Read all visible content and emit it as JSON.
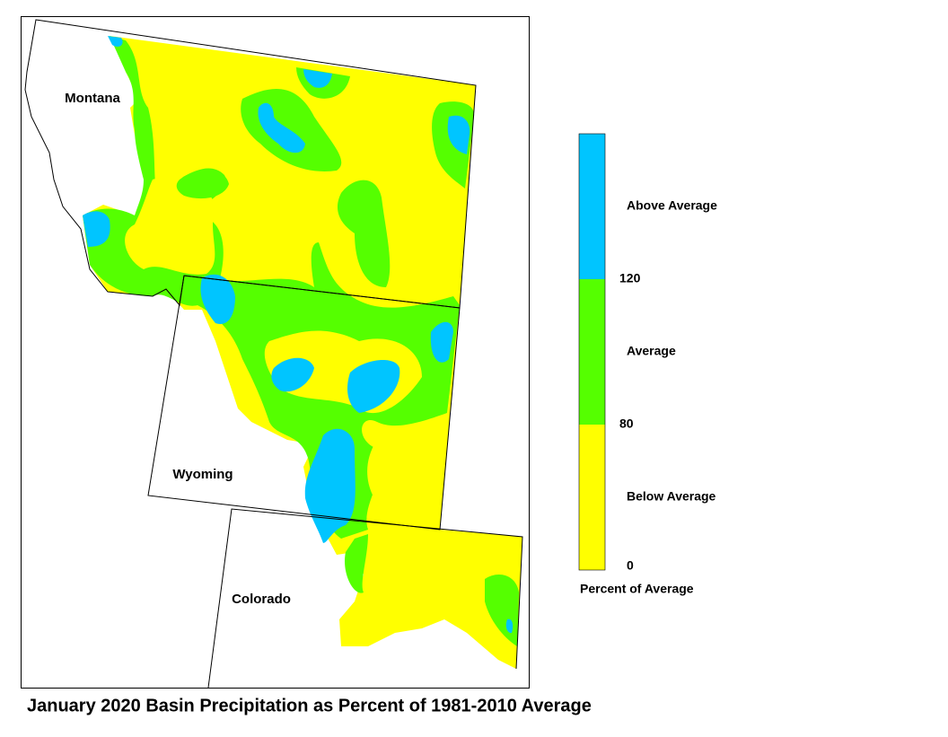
{
  "map": {
    "title": "January 2020 Basin Precipitation as Percent of 1981-2010 Average",
    "states": [
      "Montana",
      "Wyoming",
      "Colorado"
    ],
    "legend": {
      "title": "Percent of Average",
      "breaks": [
        0,
        80,
        120
      ],
      "classes": [
        {
          "label": "Below Average",
          "color": "#ffff00"
        },
        {
          "label": "Average",
          "color": "#55ff00"
        },
        {
          "label": "Above Average",
          "color": "#00c5ff"
        }
      ]
    }
  }
}
